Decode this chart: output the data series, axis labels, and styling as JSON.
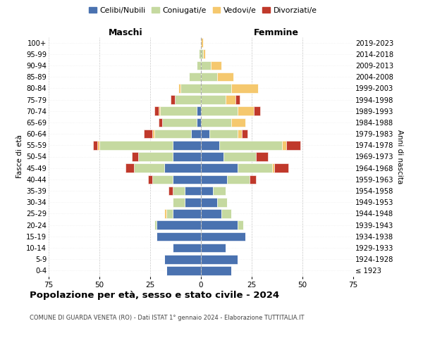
{
  "age_groups": [
    "100+",
    "95-99",
    "90-94",
    "85-89",
    "80-84",
    "75-79",
    "70-74",
    "65-69",
    "60-64",
    "55-59",
    "50-54",
    "45-49",
    "40-44",
    "35-39",
    "30-34",
    "25-29",
    "20-24",
    "15-19",
    "10-14",
    "5-9",
    "0-4"
  ],
  "birth_years": [
    "≤ 1923",
    "1924-1928",
    "1929-1933",
    "1934-1938",
    "1939-1943",
    "1944-1948",
    "1949-1953",
    "1954-1958",
    "1959-1963",
    "1964-1968",
    "1969-1973",
    "1974-1978",
    "1979-1983",
    "1984-1988",
    "1989-1993",
    "1994-1998",
    "1999-2003",
    "2004-2008",
    "2009-2013",
    "2014-2018",
    "2019-2023"
  ],
  "colors": {
    "celibi": "#4a72b0",
    "coniugati": "#c5d9a0",
    "vedovi": "#f5c86e",
    "divorziati": "#c0392b"
  },
  "maschi": {
    "celibi": [
      0,
      0,
      0,
      0,
      0,
      0,
      2,
      2,
      5,
      14,
      14,
      18,
      14,
      8,
      8,
      14,
      22,
      22,
      14,
      18,
      17
    ],
    "coniugati": [
      0,
      1,
      2,
      6,
      10,
      13,
      18,
      17,
      18,
      36,
      17,
      15,
      10,
      6,
      6,
      3,
      1,
      0,
      0,
      0,
      0
    ],
    "vedovi": [
      0,
      0,
      0,
      0,
      1,
      0,
      1,
      0,
      1,
      1,
      0,
      0,
      0,
      0,
      0,
      1,
      0,
      0,
      0,
      0,
      0
    ],
    "divorziati": [
      0,
      0,
      0,
      0,
      0,
      2,
      2,
      2,
      4,
      2,
      3,
      4,
      2,
      2,
      0,
      0,
      0,
      0,
      0,
      0,
      0
    ]
  },
  "femmine": {
    "celibi": [
      0,
      0,
      0,
      0,
      0,
      0,
      0,
      0,
      4,
      9,
      11,
      18,
      13,
      6,
      8,
      10,
      18,
      22,
      12,
      18,
      15
    ],
    "coniugati": [
      0,
      1,
      5,
      8,
      15,
      12,
      18,
      15,
      14,
      31,
      16,
      17,
      11,
      6,
      5,
      5,
      3,
      0,
      0,
      0,
      0
    ],
    "vedovi": [
      1,
      1,
      5,
      8,
      13,
      5,
      8,
      7,
      2,
      2,
      0,
      1,
      0,
      0,
      0,
      0,
      0,
      0,
      0,
      0,
      0
    ],
    "divorziati": [
      0,
      0,
      0,
      0,
      0,
      2,
      3,
      0,
      3,
      7,
      6,
      7,
      3,
      0,
      0,
      0,
      0,
      0,
      0,
      0,
      0
    ]
  },
  "title": "Popolazione per età, sesso e stato civile - 2024",
  "subtitle": "COMUNE DI GUARDA VENETA (RO) - Dati ISTAT 1° gennaio 2024 - Elaborazione TUTTITALIA.IT",
  "xlabel_left": "Maschi",
  "xlabel_right": "Femmine",
  "ylabel_left": "Fasce di età",
  "ylabel_right": "Anni di nascita",
  "xlim": 75,
  "legend_labels": [
    "Celibi/Nubili",
    "Coniugati/e",
    "Vedovi/e",
    "Divorziati/e"
  ],
  "background_color": "#ffffff",
  "grid_color": "#cccccc"
}
